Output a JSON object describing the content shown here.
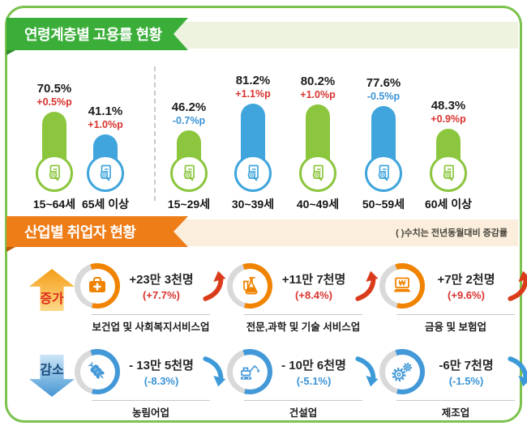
{
  "header1": {
    "title": "연령계층별 고용률 현황"
  },
  "header2": {
    "title": "산업별 취업자 현황",
    "note": "( )수치는 전년동월대비 증감률"
  },
  "chart_data": {
    "type": "bar",
    "title": "연령계층별 고용률 현황",
    "unit": "%",
    "categories": [
      "15~64세",
      "65세 이상",
      "15~29세",
      "30~39세",
      "40~49세",
      "50~59세",
      "60세 이상"
    ],
    "series": [
      {
        "name": "고용률",
        "values": [
          70.5,
          41.1,
          46.2,
          81.2,
          80.2,
          77.6,
          48.3
        ]
      }
    ],
    "changes": [
      "+0.5%p",
      "+1.0%p",
      "-0.7%p",
      "+1.1%p",
      "+1.0%p",
      "-0.5%p",
      "+0.9%p"
    ],
    "bar_colors": [
      "green",
      "blue",
      "green",
      "blue",
      "green",
      "blue",
      "green"
    ],
    "group_divider_after_index": 1,
    "ylim": [
      0,
      100
    ],
    "grid": false,
    "legend": "none"
  },
  "industry": {
    "increase": {
      "badge": "증가",
      "items": [
        {
          "icon": "medical-bag",
          "count": "+23만 3천명",
          "pct": "(+7.7%)",
          "label": "보건업 및 사회복지서비스업"
        },
        {
          "icon": "flask",
          "count": "+11만 7천명",
          "pct": "(+8.4%)",
          "label": "전문,과학 및 기술 서비스업"
        },
        {
          "icon": "laptop-won",
          "count": "+7만 2천명",
          "pct": "(+9.6%)",
          "label": "금융 및 보험업"
        }
      ]
    },
    "decrease": {
      "badge": "감소",
      "items": [
        {
          "icon": "wheat",
          "count": "- 13만 5천명",
          "pct": "(-8.3%)",
          "label": "농림어업"
        },
        {
          "icon": "excavator",
          "count": "- 10만 6천명",
          "pct": "(-5.1%)",
          "label": "건설업"
        },
        {
          "icon": "gear",
          "count": "-6만 7천명",
          "pct": "(-1.5%)",
          "label": "제조업"
        }
      ]
    }
  },
  "palette": {
    "frame_green": "#7cc24e",
    "ribbon_green": "#3bae3a",
    "strip_green": "#edf3df",
    "ribbon_orange": "#ee7c17",
    "strip_cream": "#fbeedd",
    "bar_green": "#8cc63e",
    "bar_blue": "#3fa5dc",
    "accent_orange": "#f08300",
    "accent_blue": "#4398d8",
    "positive_red": "#d8332e",
    "negative_blue": "#3a93d5",
    "swoosh_up": "#da3b1b",
    "swoosh_down": "#3d9ad8",
    "ring_gray": "#d9d9d9"
  }
}
